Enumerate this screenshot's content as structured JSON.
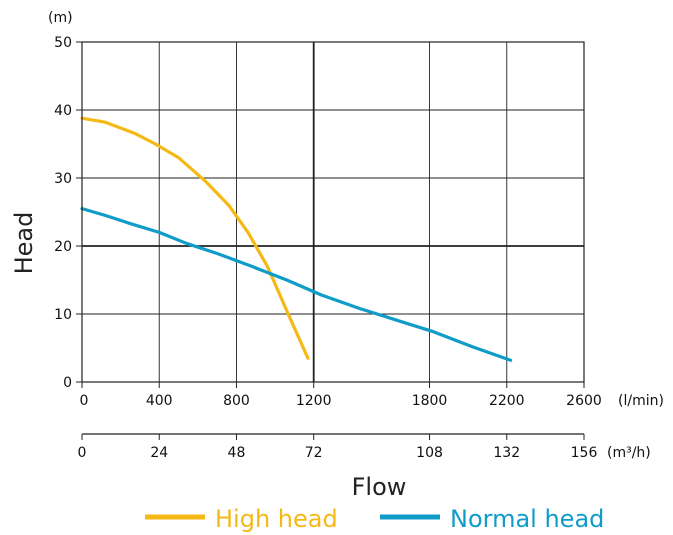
{
  "chart_data": {
    "type": "line",
    "ylabel": "Head",
    "yunit": "(m)",
    "xlabel": "Flow",
    "x_unit": "(l/min)",
    "x2_unit": "(m³/h)",
    "ylim": [
      0,
      50
    ],
    "xlim": [
      0,
      2600
    ],
    "yticks": [
      "0",
      "10",
      "20",
      "30",
      "40",
      "50"
    ],
    "xticks": [
      "0",
      "400",
      "800",
      "1200",
      "1800",
      "2200",
      "2600"
    ],
    "x2ticks": [
      "0",
      "24",
      "48",
      "72",
      "108",
      "132",
      "156"
    ],
    "grid": true,
    "legend": "bottom",
    "series": [
      {
        "name": "High head",
        "color": "#F5B916",
        "x": [
          0,
          120,
          270,
          380,
          500,
          640,
          760,
          860,
          960,
          1060,
          1170
        ],
        "y": [
          38.8,
          38.2,
          36.6,
          35.0,
          33.0,
          29.5,
          26.0,
          22.0,
          17.0,
          10.5,
          3.5
        ]
      },
      {
        "name": "Normal head",
        "color": "#0F9CC8",
        "x": [
          0,
          120,
          260,
          400,
          540,
          700,
          880,
          1060,
          1240,
          1440,
          1640,
          1820,
          2020,
          2220
        ],
        "y": [
          25.5,
          24.5,
          23.2,
          22.0,
          20.4,
          18.9,
          17.0,
          15.0,
          12.8,
          10.8,
          9.0,
          7.4,
          5.2,
          3.2
        ]
      }
    ]
  }
}
